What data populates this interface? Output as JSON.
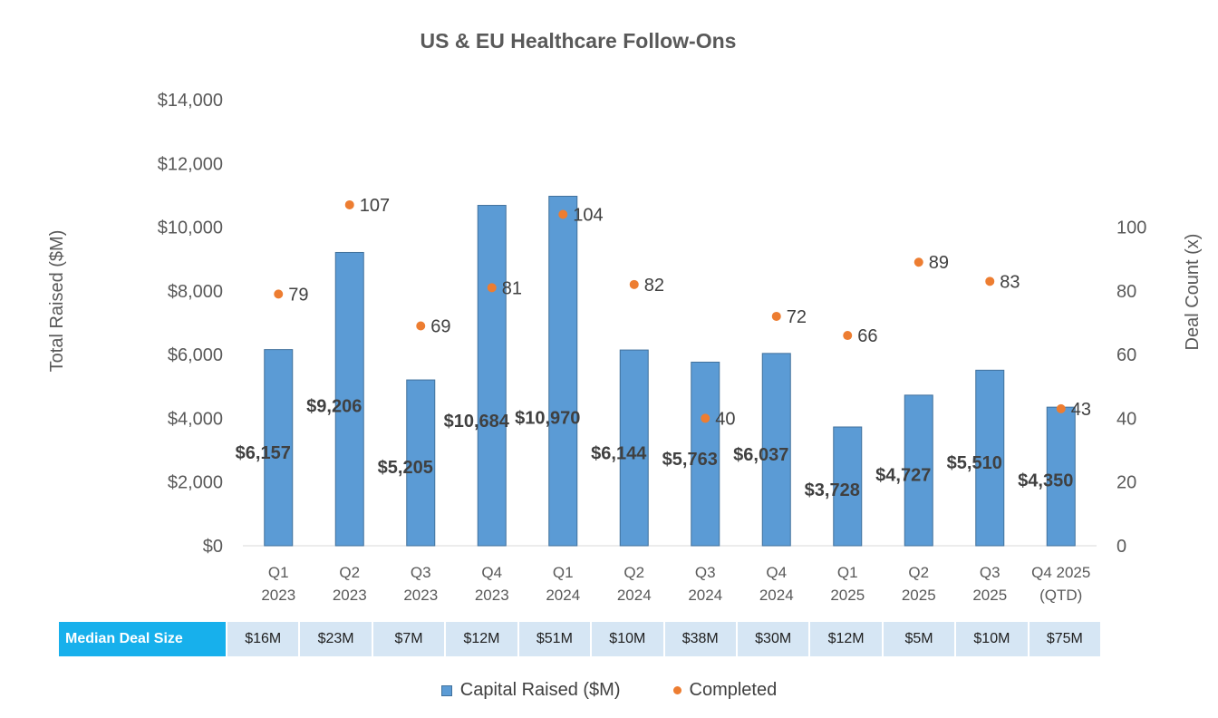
{
  "chart_data": {
    "type": "bar",
    "title": "US & EU Healthcare Follow-Ons",
    "ylabel": "Total Raised ($M)",
    "y2label": "Deal Count (x)",
    "ylim": [
      0,
      14000
    ],
    "y2lim": [
      0,
      140
    ],
    "y_ticks": [
      "$0",
      "$2,000",
      "$4,000",
      "$6,000",
      "$8,000",
      "$10,000",
      "$12,000",
      "$14,000"
    ],
    "y_tick_values": [
      0,
      2000,
      4000,
      6000,
      8000,
      10000,
      12000,
      14000
    ],
    "y2_ticks": [
      "0",
      "20",
      "40",
      "60",
      "80",
      "100"
    ],
    "y2_tick_values": [
      0,
      20,
      40,
      60,
      80,
      100
    ],
    "categories": [
      [
        "Q1",
        "2023"
      ],
      [
        "Q2",
        "2023"
      ],
      [
        "Q3",
        "2023"
      ],
      [
        "Q4",
        "2023"
      ],
      [
        "Q1",
        "2024"
      ],
      [
        "Q2",
        "2024"
      ],
      [
        "Q3",
        "2024"
      ],
      [
        "Q4",
        "2024"
      ],
      [
        "Q1",
        "2025"
      ],
      [
        "Q2",
        "2025"
      ],
      [
        "Q3",
        "2025"
      ],
      [
        "Q4 2025",
        "(QTD)"
      ]
    ],
    "series": [
      {
        "name": "Capital Raised ($M)",
        "type": "bar",
        "axis": "left",
        "color": "#5b9bd5",
        "values": [
          6157,
          9206,
          5205,
          10684,
          10970,
          6144,
          5763,
          6037,
          3728,
          4727,
          5510,
          4350
        ],
        "labels": [
          "$6,157",
          "$9,206",
          "$5,205",
          "$10,684",
          "$10,970",
          "$6,144",
          "$5,763",
          "$6,037",
          "$3,728",
          "$4,727",
          "$5,510",
          "$4,350"
        ]
      },
      {
        "name": "Completed",
        "type": "scatter",
        "axis": "right",
        "color": "#ed7d31",
        "values": [
          79,
          107,
          69,
          81,
          104,
          82,
          40,
          72,
          66,
          89,
          83,
          43
        ],
        "labels": [
          "79",
          "107",
          "69",
          "81",
          "104",
          "82",
          "40",
          "72",
          "66",
          "89",
          "83",
          "43"
        ]
      }
    ],
    "legend_position": "bottom",
    "grid": false
  },
  "median_table": {
    "header": "Median Deal Size",
    "values": [
      "$16M",
      "$23M",
      "$7M",
      "$12M",
      "$51M",
      "$10M",
      "$38M",
      "$30M",
      "$12M",
      "$5M",
      "$10M",
      "$75M"
    ]
  },
  "legend": {
    "bar_label": "Capital Raised ($M)",
    "dot_label": "Completed"
  }
}
